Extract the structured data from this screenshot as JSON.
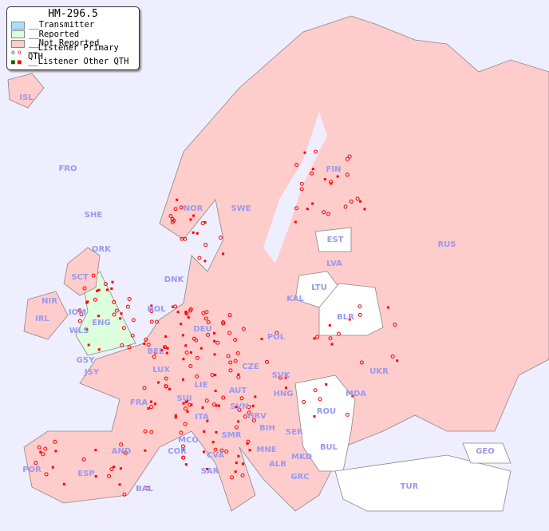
{
  "legend": {
    "title": "HM-296.5",
    "items": [
      {
        "label": "__Transmitter",
        "color": "#aaddff"
      },
      {
        "label": "__Reported",
        "color": "#ddffdd"
      },
      {
        "label": "__Not Reported",
        "color": "#ffcccc"
      },
      {
        "label": "__Listener Primary QTH",
        "color": "#ff0000"
      },
      {
        "label": "__Listener Other QTH",
        "color": "#ff0000"
      }
    ]
  },
  "colors": {
    "sea": "#eeeeff",
    "not_reported": "#ffcccc",
    "reported": "#ddffdd",
    "no_data": "#ffffff",
    "label": "#9999ee",
    "marker": "#ff0000"
  },
  "countries": [
    "ISL",
    "FRO",
    "SHE",
    "ORK",
    "NOR",
    "SWE",
    "FIN",
    "EST",
    "RUS",
    "LVA",
    "LTU",
    "KAL",
    "BLR",
    "DNK",
    "HOL",
    "DEU",
    "POL",
    "UKR",
    "IRL",
    "NIR",
    "SCT",
    "IOM",
    "WLS",
    "ENG",
    "GSY",
    "JSY",
    "BEL",
    "LUX",
    "FRA",
    "SUI",
    "LIE",
    "AUT",
    "CZE",
    "SVK",
    "HNG",
    "SVN",
    "HRV",
    "ITA",
    "BIH",
    "SER",
    "ROU",
    "MDA",
    "BUL",
    "MNE",
    "ALB",
    "MKD",
    "GRC",
    "TUR",
    "GEO",
    "AND",
    "ESP",
    "POR",
    "BAL",
    "COR",
    "MCO",
    "SAR",
    "CVA",
    "SMR"
  ]
}
